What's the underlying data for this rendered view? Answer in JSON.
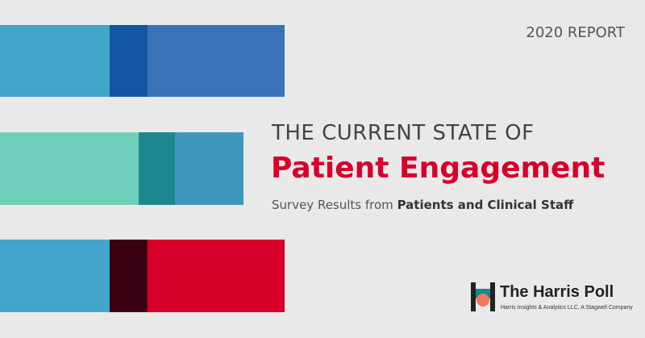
{
  "header": {
    "report": "2020 REPORT"
  },
  "title": {
    "kicker": "THE CURRENT STATE OF",
    "main": "Patient Engagement"
  },
  "subtitle": {
    "lead": "Survey Results from",
    "emphasis": "Patients and Clinical Staff"
  },
  "logo": {
    "name": "The Harris Poll",
    "tagline": "Harris Insights & Analytics LLC, A Stagwell Company"
  }
}
